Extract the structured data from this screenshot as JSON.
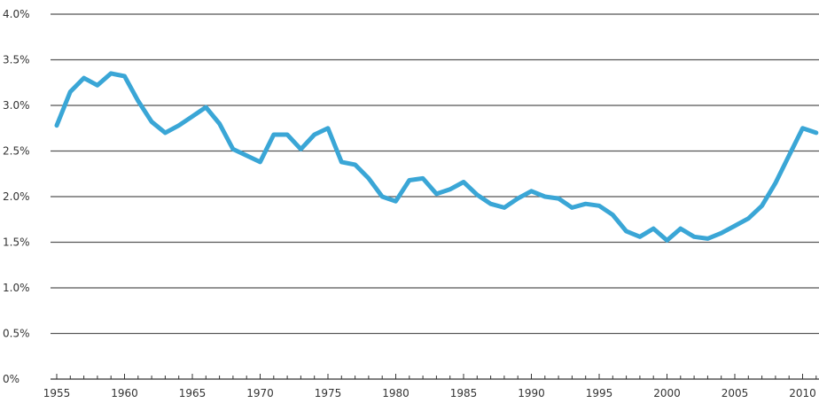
{
  "chart_data": {
    "type": "line",
    "title": "",
    "xlabel": "",
    "ylabel": "",
    "xlim": [
      1955,
      2011
    ],
    "ylim": [
      0,
      4.0
    ],
    "grid": true,
    "y_ticks": [
      0,
      0.5,
      1.0,
      1.5,
      2.0,
      2.5,
      3.0,
      3.5,
      4.0
    ],
    "y_tick_labels": [
      "0%",
      "0.5%",
      "1.0%",
      "1.5%",
      "2.0%",
      "2.5%",
      "3.0%",
      "3.5%",
      "4.0%"
    ],
    "x_ticks": [
      1955,
      1960,
      1965,
      1970,
      1975,
      1980,
      1985,
      1990,
      1995,
      2000,
      2005,
      2010
    ],
    "x_tick_labels": [
      "1955",
      "1960",
      "1965",
      "1970",
      "1975",
      "1980",
      "1985",
      "1990",
      "1995",
      "2000",
      "2005",
      "2010"
    ],
    "series": [
      {
        "color": "#3aa6d6",
        "x": [
          1955,
          1956,
          1957,
          1958,
          1959,
          1960,
          1961,
          1962,
          1963,
          1964,
          1965,
          1966,
          1967,
          1968,
          1969,
          1970,
          1971,
          1972,
          1973,
          1974,
          1975,
          1976,
          1977,
          1978,
          1979,
          1980,
          1981,
          1982,
          1983,
          1984,
          1985,
          1986,
          1987,
          1988,
          1989,
          1990,
          1991,
          1992,
          1993,
          1994,
          1995,
          1996,
          1997,
          1998,
          1999,
          2000,
          2001,
          2002,
          2003,
          2004,
          2005,
          2006,
          2007,
          2008,
          2009,
          2010,
          2011
        ],
        "values": [
          2.78,
          3.15,
          3.3,
          3.22,
          3.35,
          3.32,
          3.05,
          2.82,
          2.7,
          2.78,
          2.88,
          2.98,
          2.8,
          2.52,
          2.45,
          2.38,
          2.68,
          2.68,
          2.52,
          2.68,
          2.75,
          2.38,
          2.35,
          2.2,
          2.0,
          1.95,
          2.18,
          2.2,
          2.03,
          2.08,
          2.16,
          2.02,
          1.92,
          1.88,
          1.98,
          2.06,
          2.0,
          1.98,
          1.88,
          1.92,
          1.9,
          1.8,
          1.62,
          1.56,
          1.65,
          1.52,
          1.65,
          1.56,
          1.54,
          1.6,
          1.68,
          1.76,
          1.9,
          2.15,
          2.45,
          2.75,
          2.7
        ]
      }
    ]
  }
}
